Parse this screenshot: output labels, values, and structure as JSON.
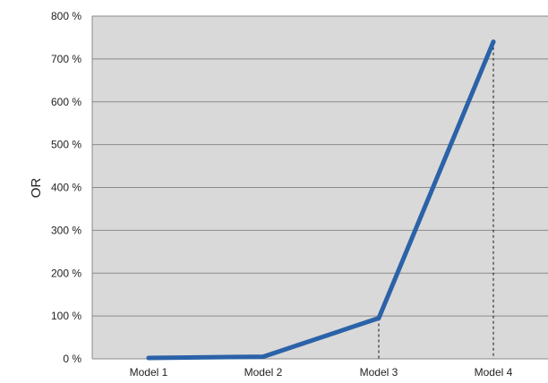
{
  "chart_data": {
    "type": "line",
    "title": "",
    "xlabel": "",
    "ylabel": "OR",
    "categories": [
      "Model 1",
      "Model 2",
      "Model 3",
      "Model 4"
    ],
    "series": [
      {
        "values": [
          2,
          5,
          95,
          740
        ],
        "color": "#2b62a8"
      }
    ],
    "ylim": [
      0,
      800
    ],
    "yticks": [
      0,
      100,
      200,
      300,
      400,
      500,
      600,
      700,
      800
    ],
    "ytick_labels": [
      "0 %",
      "100 %",
      "200 %",
      "300 %",
      "400 %",
      "500 %",
      "600 %",
      "700 %",
      "800 %"
    ],
    "grid": true,
    "legend": "none",
    "plot_background": "#d9d9d9",
    "drop_lines": [
      "Model 3",
      "Model 4"
    ]
  }
}
